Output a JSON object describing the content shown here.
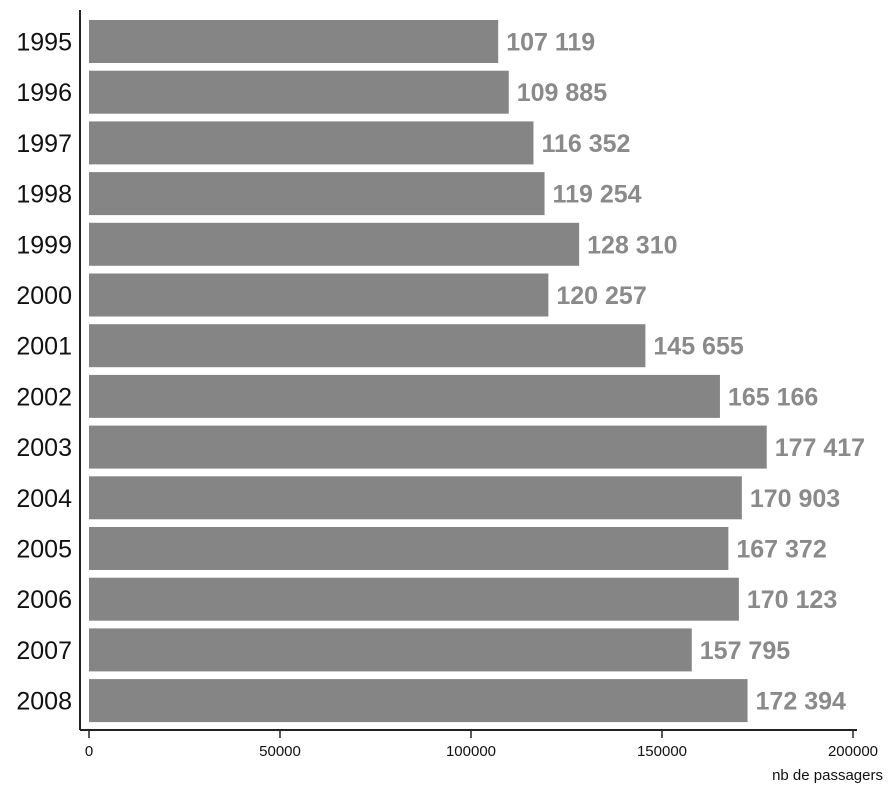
{
  "chart_data": {
    "type": "bar",
    "orientation": "horizontal",
    "categories": [
      "1995",
      "1996",
      "1997",
      "1998",
      "1999",
      "2000",
      "2001",
      "2002",
      "2003",
      "2004",
      "2005",
      "2006",
      "2007",
      "2008"
    ],
    "values": [
      107119,
      109885,
      116352,
      119254,
      128310,
      120257,
      145655,
      165166,
      177417,
      170903,
      167372,
      170123,
      157795,
      172394
    ],
    "value_labels": [
      "107 119",
      "109 885",
      "116 352",
      "119 254",
      "128 310",
      "120 257",
      "145 655",
      "165 166",
      "177 417",
      "170 903",
      "167 372",
      "170 123",
      "157 795",
      "172 394"
    ],
    "xlabel": "nb de passagers",
    "xlim": [
      0,
      200000
    ],
    "x_ticks": [
      0,
      50000,
      100000,
      150000,
      200000
    ],
    "x_tick_labels": [
      "0",
      "50000",
      "100000",
      "150000",
      "200000"
    ],
    "grid": false,
    "colors": {
      "bar": "#858585",
      "value_label": "#8a8a8a",
      "axis": "#222222",
      "category_label": "#111111"
    }
  }
}
